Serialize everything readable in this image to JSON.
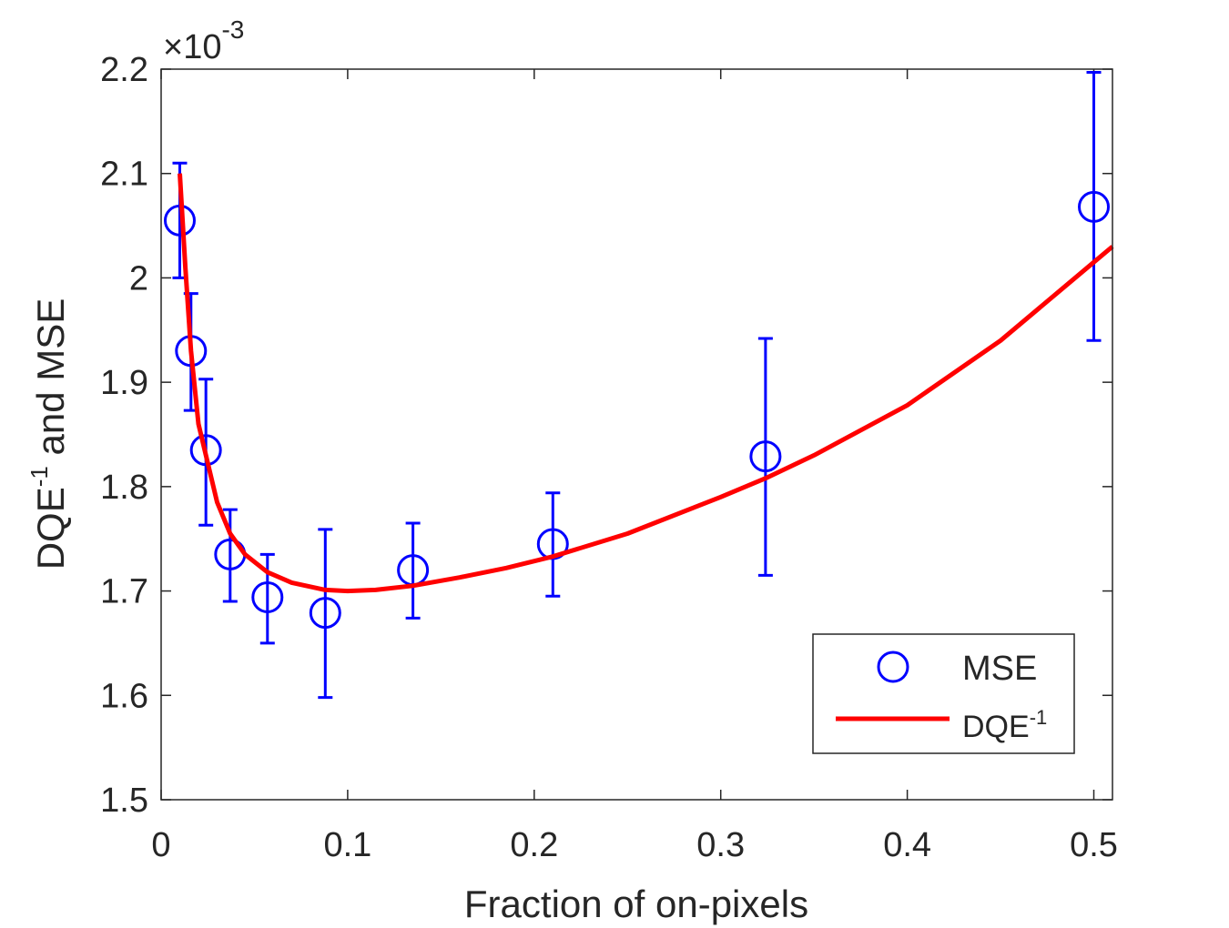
{
  "chart_data": {
    "type": "scatter",
    "xlabel": "Fraction of on-pixels",
    "ylabel": "DQE",
    "ylabel_sup": "-1",
    "ylabel_rest": " and MSE",
    "exponent_prefix": "×10",
    "exponent_power": "-3",
    "xlim": [
      0,
      0.51
    ],
    "ylim": [
      1.5,
      2.2
    ],
    "xticks": [
      0,
      0.1,
      0.2,
      0.3,
      0.4,
      0.5
    ],
    "xtick_labels": [
      "0",
      "0.1",
      "0.2",
      "0.3",
      "0.4",
      "0.5"
    ],
    "yticks": [
      1.5,
      1.6,
      1.7,
      1.8,
      1.9,
      2.0,
      2.1,
      2.2
    ],
    "ytick_labels": [
      "1.5",
      "1.6",
      "1.7",
      "1.8",
      "1.9",
      "2",
      "2.1",
      "2.2"
    ],
    "grid": false,
    "legend_position": "bottom-right",
    "series": [
      {
        "name": "MSE",
        "kind": "errorbar",
        "color": "#0000ff",
        "points": [
          {
            "x": 0.01,
            "y": 2.055,
            "low": 2.0,
            "high": 2.11
          },
          {
            "x": 0.016,
            "y": 1.93,
            "low": 1.873,
            "high": 1.985
          },
          {
            "x": 0.024,
            "y": 1.835,
            "low": 1.763,
            "high": 1.903
          },
          {
            "x": 0.037,
            "y": 1.735,
            "low": 1.69,
            "high": 1.778
          },
          {
            "x": 0.057,
            "y": 1.694,
            "low": 1.65,
            "high": 1.735
          },
          {
            "x": 0.088,
            "y": 1.679,
            "low": 1.598,
            "high": 1.759
          },
          {
            "x": 0.135,
            "y": 1.72,
            "low": 1.674,
            "high": 1.765
          },
          {
            "x": 0.21,
            "y": 1.745,
            "low": 1.695,
            "high": 1.794
          },
          {
            "x": 0.324,
            "y": 1.829,
            "low": 1.715,
            "high": 1.942
          },
          {
            "x": 0.5,
            "y": 2.068,
            "low": 1.94,
            "high": 2.197
          }
        ]
      },
      {
        "name": "DQE",
        "name_sup": "-1",
        "kind": "line",
        "color": "#ff0000",
        "x": [
          0.01,
          0.013,
          0.016,
          0.02,
          0.024,
          0.03,
          0.037,
          0.045,
          0.057,
          0.07,
          0.088,
          0.1,
          0.115,
          0.135,
          0.16,
          0.185,
          0.21,
          0.25,
          0.3,
          0.324,
          0.35,
          0.4,
          0.45,
          0.5,
          0.51
        ],
        "y": [
          2.1,
          2.01,
          1.93,
          1.86,
          1.83,
          1.785,
          1.755,
          1.735,
          1.718,
          1.708,
          1.701,
          1.7,
          1.701,
          1.705,
          1.713,
          1.722,
          1.733,
          1.755,
          1.79,
          1.808,
          1.83,
          1.878,
          1.94,
          2.015,
          2.03
        ]
      }
    ]
  }
}
